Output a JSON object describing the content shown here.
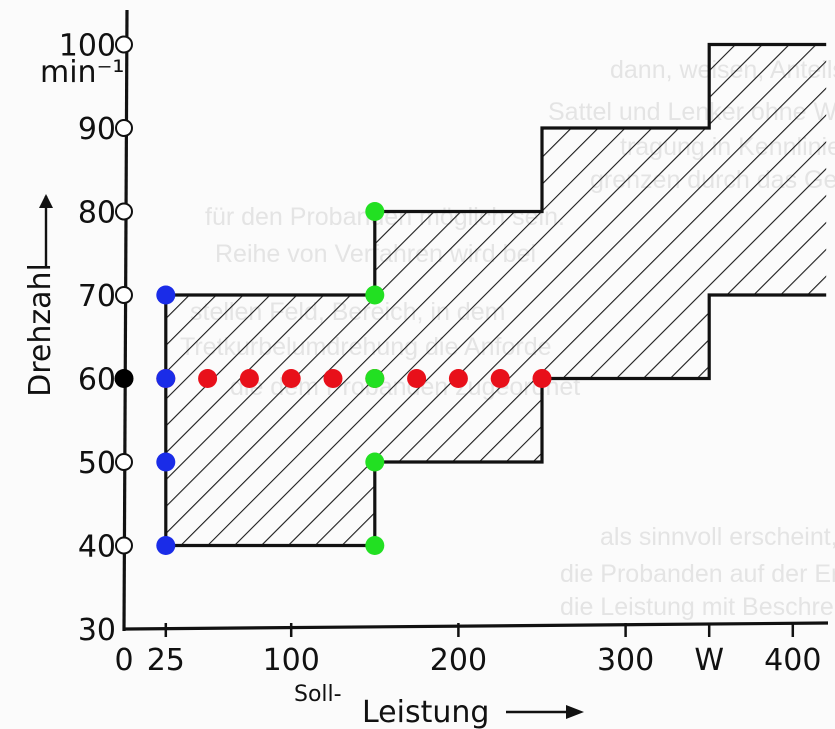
{
  "chart_data": {
    "type": "area",
    "xlabel_prefix": "Soll-",
    "xlabel": "Leistung",
    "ylabel": "Drehzahl",
    "y_unit": "min⁻¹",
    "xlim": [
      0,
      420
    ],
    "ylim": [
      30,
      100
    ],
    "x_ticks": [
      {
        "value": 0,
        "label": "0"
      },
      {
        "value": 25,
        "label": "25"
      },
      {
        "value": 100,
        "label": "100"
      },
      {
        "value": 200,
        "label": "200"
      },
      {
        "value": 300,
        "label": "300"
      },
      {
        "value": 350,
        "label": "W"
      },
      {
        "value": 400,
        "label": "400"
      }
    ],
    "y_ticks": [
      30,
      40,
      50,
      60,
      70,
      80,
      90,
      100
    ],
    "band": {
      "upper": [
        [
          25,
          70
        ],
        [
          150,
          70
        ],
        [
          150,
          80
        ],
        [
          250,
          80
        ],
        [
          250,
          90
        ],
        [
          350,
          90
        ],
        [
          350,
          100
        ],
        [
          420,
          100
        ]
      ],
      "lower": [
        [
          25,
          40
        ],
        [
          150,
          40
        ],
        [
          150,
          50
        ],
        [
          250,
          50
        ],
        [
          250,
          60
        ],
        [
          350,
          60
        ],
        [
          350,
          70
        ],
        [
          420,
          70
        ]
      ]
    },
    "point_series": [
      {
        "color": "#ffffff",
        "points": [
          [
            0,
            40
          ],
          [
            0,
            50
          ],
          [
            0,
            60
          ],
          [
            0,
            70
          ],
          [
            0,
            80
          ],
          [
            0,
            90
          ],
          [
            0,
            100
          ]
        ]
      },
      {
        "color": "#000000",
        "points": [
          [
            0,
            60
          ]
        ]
      },
      {
        "color": "#e8101a",
        "points": [
          [
            25,
            60
          ],
          [
            50,
            60
          ],
          [
            75,
            60
          ],
          [
            100,
            60
          ],
          [
            125,
            60
          ],
          [
            150,
            60
          ],
          [
            175,
            60
          ],
          [
            200,
            60
          ],
          [
            225,
            60
          ],
          [
            250,
            60
          ]
        ]
      },
      {
        "color": "#1a2ce8",
        "points": [
          [
            25,
            40
          ],
          [
            25,
            50
          ],
          [
            25,
            60
          ],
          [
            25,
            70
          ]
        ]
      },
      {
        "color": "#22e022",
        "points": [
          [
            150,
            40
          ],
          [
            150,
            50
          ],
          [
            150,
            60
          ],
          [
            150,
            70
          ],
          [
            150,
            80
          ]
        ]
      }
    ]
  },
  "background_text": [
    "dann, weisen, Anteils oder Ch",
    "Sattel und Lenker ohne Werkzeug",
    "tragung in Kennlinien an mit",
    "grenzen durch das Gesamtgewicht",
    "für den Probanden möglich sein.",
    "Reihe von Verfahren wird bei",
    "stellen Feld, Bereich, in dem",
    "Tretkurbelumdrehung die Anforde",
    "die dem Probanden zugeordnet",
    "als sinnvoll erscheint, wird die",
    "die Probanden auf der Ergometer",
    "die Leistung mit Beschreibung"
  ]
}
